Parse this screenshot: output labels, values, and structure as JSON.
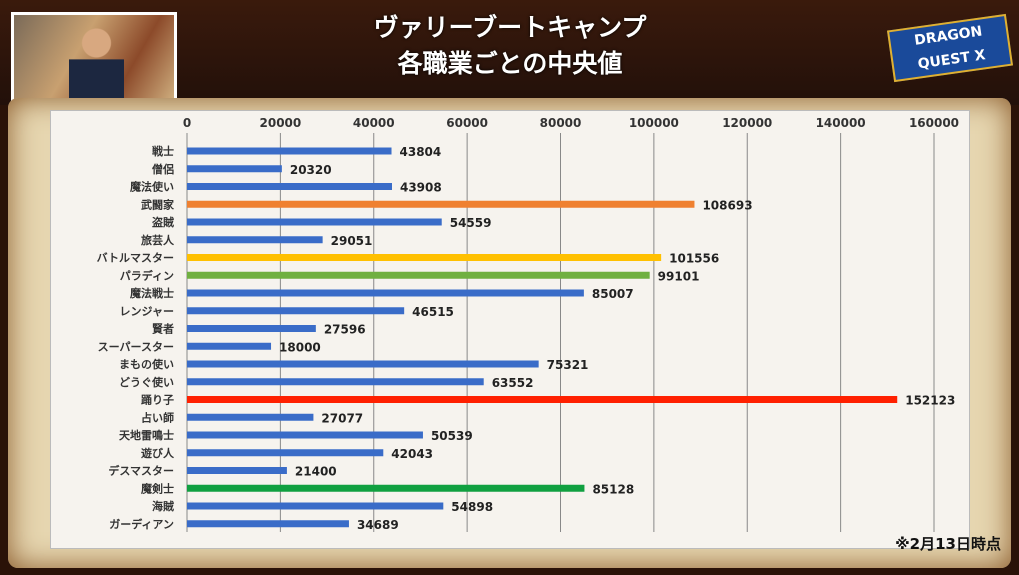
{
  "header": {
    "title_line1": "ヴァリーブートキャンプ",
    "title_line2": "各職業ごとの中央値",
    "logo": "DRAGON QUEST X"
  },
  "note": "※2月13日時点",
  "chart_data": {
    "type": "bar",
    "orientation": "horizontal",
    "title": "各職業ごとの中央値",
    "xlim": [
      0,
      160000
    ],
    "xticks": [
      0,
      20000,
      40000,
      60000,
      80000,
      100000,
      120000,
      140000,
      160000
    ],
    "grid": true,
    "categories": [
      "戦士",
      "僧侶",
      "魔法使い",
      "武闘家",
      "盗賊",
      "旅芸人",
      "バトルマスター",
      "パラディン",
      "魔法戦士",
      "レンジャー",
      "賢者",
      "スーパースター",
      "まもの使い",
      "どうぐ使い",
      "踊り子",
      "占い師",
      "天地雷鳴士",
      "遊び人",
      "デスマスター",
      "魔剣士",
      "海賊",
      "ガーディアン"
    ],
    "values": [
      43804,
      20320,
      43908,
      108693,
      54559,
      29051,
      101556,
      99101,
      85007,
      46515,
      27596,
      18000,
      75321,
      63552,
      152123,
      27077,
      50539,
      42043,
      21400,
      85128,
      54898,
      34689
    ],
    "colors": [
      "#3a6cc8",
      "#3a6cc8",
      "#3a6cc8",
      "#ef8030",
      "#3a6cc8",
      "#3a6cc8",
      "#ffc000",
      "#70b040",
      "#3a6cc8",
      "#3a6cc8",
      "#3a6cc8",
      "#3a6cc8",
      "#3a6cc8",
      "#3a6cc8",
      "#ff2000",
      "#3a6cc8",
      "#3a6cc8",
      "#3a6cc8",
      "#3a6cc8",
      "#10a040",
      "#3a6cc8",
      "#3a6cc8"
    ]
  }
}
